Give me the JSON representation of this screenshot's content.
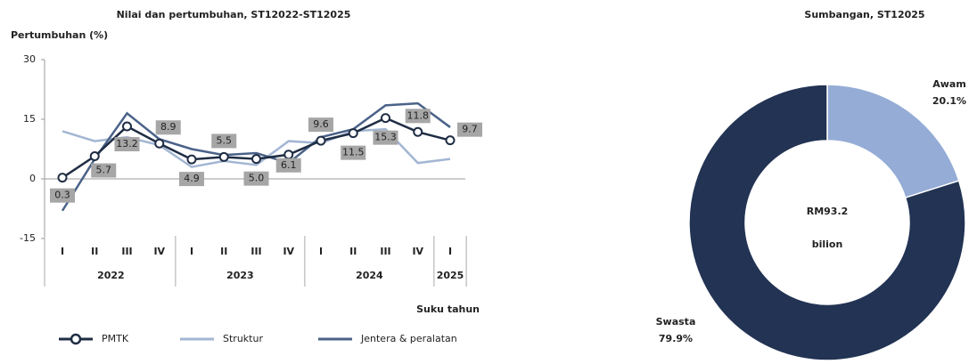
{
  "chart_data": [
    {
      "type": "line",
      "title": "Nilai dan pertumbuhan, ST12022-ST12025",
      "y_label": "Pertumbuhan (%)",
      "x_label": "Suku tahun",
      "groups": [
        {
          "label": "2022",
          "categories": [
            "I",
            "II",
            "III",
            "IV"
          ]
        },
        {
          "label": "2023",
          "categories": [
            "I",
            "II",
            "III",
            "IV"
          ]
        },
        {
          "label": "2024",
          "categories": [
            "I",
            "II",
            "III",
            "IV"
          ]
        },
        {
          "label": "2025",
          "categories": [
            "I"
          ]
        }
      ],
      "ylim": [
        -15,
        30
      ],
      "yticks": [
        -15,
        0,
        15,
        30
      ],
      "series": [
        {
          "name": "PMTK",
          "color": "#1f2d44",
          "markers": true,
          "values": [
            0.3,
            5.7,
            13.2,
            8.9,
            4.9,
            5.5,
            5.0,
            6.1,
            9.6,
            11.5,
            15.3,
            11.8,
            9.7
          ],
          "value_labels": [
            "0.3",
            "5.7",
            "13.2",
            "8.9",
            "4.9",
            "5.5",
            "5.0",
            "6.1",
            "9.6",
            "11.5",
            "15.3",
            "11.8",
            "9.7"
          ]
        },
        {
          "name": "Struktur",
          "color": "#a3b6d3",
          "values": [
            12,
            9.5,
            10.5,
            8.5,
            3,
            4.5,
            3.5,
            9.5,
            9,
            12,
            12.5,
            4,
            5
          ]
        },
        {
          "name": "Jentera & peralatan",
          "color": "#4a6288",
          "values": [
            -8,
            5,
            16.5,
            10,
            7.5,
            6,
            6.5,
            4,
            10.5,
            12.5,
            18.5,
            19,
            13
          ]
        }
      ]
    },
    {
      "type": "donut",
      "title": "Sumbangan, ST12025",
      "center_label": [
        "RM93.2",
        "bilion"
      ],
      "categories": [
        "Awam",
        "Swasta"
      ],
      "values": [
        20.1,
        79.9
      ],
      "value_labels": [
        "20.1%",
        "79.9%"
      ],
      "colors": [
        "#94acd6",
        "#223353"
      ]
    }
  ]
}
